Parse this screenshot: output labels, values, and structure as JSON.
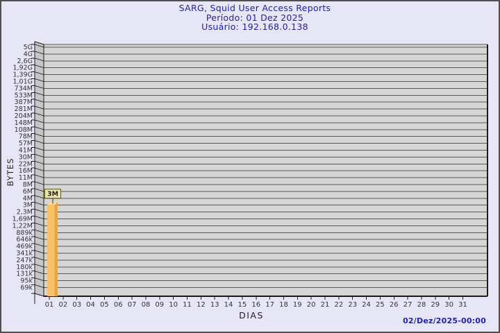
{
  "header": {
    "title": "SARG, Squid User Access Reports",
    "period": "Período: 01 Dez 2025",
    "user": "Usuário: 192.168.0.138"
  },
  "footer": {
    "timestamp": "02/Dez/2025-00:00"
  },
  "chart_data": {
    "type": "bar",
    "title": "SARG, Squid User Access Reports",
    "period_line": "Período: 01 Dez 2025",
    "user_line": "Usuário: 192.168.0.138",
    "xlabel": "DIAS",
    "ylabel": "BYTES",
    "footer_timestamp": "02/Dez/2025-00:00",
    "categories": [
      "01",
      "02",
      "03",
      "04",
      "05",
      "06",
      "07",
      "08",
      "09",
      "10",
      "11",
      "12",
      "13",
      "14",
      "15",
      "16",
      "17",
      "18",
      "19",
      "20",
      "21",
      "22",
      "23",
      "24",
      "25",
      "26",
      "27",
      "28",
      "29",
      "30",
      "31"
    ],
    "y_tick_labels": [
      "5G",
      "4G",
      "2,6G",
      "1,92G",
      "1,39G",
      "1,01G",
      "734M",
      "533M",
      "387M",
      "281M",
      "204M",
      "148M",
      "108M",
      "78M",
      "57M",
      "41M",
      "30M",
      "22M",
      "16M",
      "11M",
      "8M",
      "6M",
      "4M",
      "3M",
      "2,3M",
      "1,69M",
      "1,22M",
      "889k",
      "646k",
      "469k",
      "341k",
      "247k",
      "180k",
      "131k",
      "95k",
      "69k"
    ],
    "bars": [
      {
        "category": "01",
        "value_label": "3M",
        "grid_index_of_top": 23
      }
    ],
    "grid": true,
    "legend": null,
    "style_3d": true,
    "colors": {
      "page_bg": "#e6e6f6",
      "plot_bg": "#d5d5d5",
      "wall_bg": "#c6c6c6",
      "gridline": "#585858",
      "axis": "#1a1a1a",
      "tick_text": "#333333",
      "bar_front": "#fbc168",
      "bar_side": "#e2a74c",
      "bar_top": "#fdd795",
      "bar_label_bg": "#f0e6a8",
      "bar_label_border": "#55550f",
      "title_text": "#2121a5",
      "timestamp_text": "#2121b5"
    }
  }
}
